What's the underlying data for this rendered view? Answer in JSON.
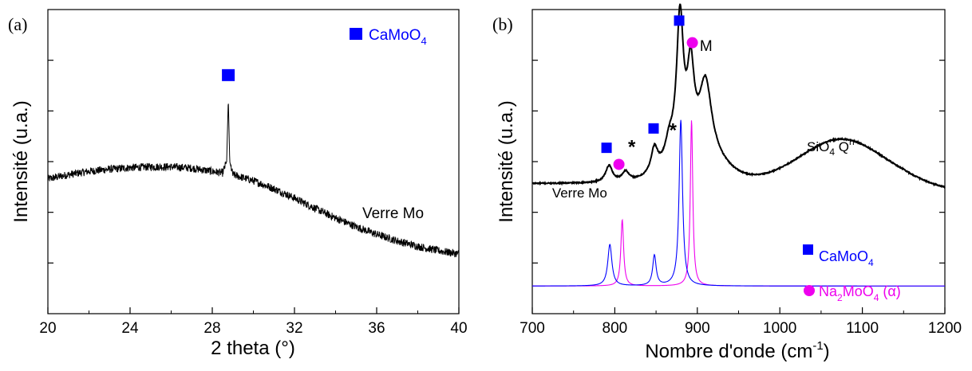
{
  "chart_data": [
    {
      "panel_label": "(a)",
      "type": "line",
      "xlabel": "2 theta (°)",
      "ylabel": "Intensité (u.a.)",
      "xlim": [
        20,
        40
      ],
      "x_ticks": [
        20,
        24,
        28,
        32,
        36,
        40
      ],
      "x_tick_labels": [
        "20",
        "24",
        "28",
        "32",
        "36",
        "40"
      ],
      "y_tick_labels_shown": false,
      "grid": false,
      "legend": {
        "position": "top-right",
        "entries": [
          {
            "marker": "square",
            "color": "#0000ff",
            "label_main": "CaMoO",
            "label_sub": "4"
          }
        ]
      },
      "series": [
        {
          "name": "Verre Mo",
          "color": "#000000",
          "points": [
            [
              20.0,
              0.62
            ],
            [
              21.0,
              0.64
            ],
            [
              22.0,
              0.655
            ],
            [
              23.0,
              0.665
            ],
            [
              24.0,
              0.672
            ],
            [
              25.0,
              0.676
            ],
            [
              26.0,
              0.676
            ],
            [
              27.0,
              0.67
            ],
            [
              28.0,
              0.655
            ],
            [
              28.5,
              0.648
            ],
            [
              28.7,
              0.7
            ],
            [
              28.78,
              0.99
            ],
            [
              28.85,
              0.7
            ],
            [
              29.0,
              0.64
            ],
            [
              30.0,
              0.612
            ],
            [
              31.0,
              0.575
            ],
            [
              32.0,
              0.532
            ],
            [
              33.0,
              0.485
            ],
            [
              34.0,
              0.44
            ],
            [
              35.0,
              0.4
            ],
            [
              36.0,
              0.365
            ],
            [
              37.0,
              0.335
            ],
            [
              38.0,
              0.31
            ],
            [
              39.0,
              0.29
            ],
            [
              40.0,
              0.275
            ]
          ],
          "noise_amplitude": 0.018
        }
      ],
      "annotations": [
        {
          "type": "marker",
          "shape": "square",
          "color": "#0000ff",
          "x": 28.78,
          "y": 1.1
        },
        {
          "type": "text",
          "text": "Verre Mo",
          "x": 35.3,
          "y": 0.44
        }
      ],
      "ylim": [
        0,
        1.4
      ]
    },
    {
      "panel_label": "(b)",
      "type": "line",
      "xlabel_main": "Nombre d'onde (cm",
      "xlabel_sup": "-1",
      "xlabel_end": ")",
      "ylabel": "Intensité (u.a.)",
      "xlim": [
        700,
        1200
      ],
      "x_ticks": [
        700,
        800,
        900,
        1000,
        1100,
        1200
      ],
      "x_tick_labels": [
        "700",
        "800",
        "900",
        "1000",
        "1100",
        "1200"
      ],
      "y_tick_labels_shown": false,
      "grid": false,
      "ylim": [
        -0.1,
        1.0
      ],
      "series": [
        {
          "name": "Verre Mo",
          "color": "#000000",
          "baseline": 0.37,
          "peaks": [
            {
              "center": 793,
              "height": 0.06,
              "width": 5
            },
            {
              "center": 813,
              "height": 0.035,
              "width": 5
            },
            {
              "center": 848,
              "height": 0.09,
              "width": 5
            },
            {
              "center": 866,
              "height": 0.07,
              "width": 6
            },
            {
              "center": 879,
              "height": 0.5,
              "width": 5
            },
            {
              "center": 892,
              "height": 0.28,
              "width": 5
            },
            {
              "center": 910,
              "height": 0.26,
              "width": 9
            },
            {
              "center": 900,
              "height": 0.1,
              "width": 30
            },
            {
              "center": 1075,
              "height": 0.16,
              "width": 50
            }
          ],
          "broad_gaussian": true
        },
        {
          "name": "CaMoO4",
          "color": "#0000ff",
          "baseline": 0.0,
          "peaks": [
            {
              "center": 794,
              "height": 0.15,
              "width": 3
            },
            {
              "center": 848,
              "height": 0.11,
              "width": 2.5
            },
            {
              "center": 880,
              "height": 0.6,
              "width": 2.5
            }
          ]
        },
        {
          "name": "Na2MoO4 (α)",
          "color": "#ee00ee",
          "baseline": 0.0,
          "peaks": [
            {
              "center": 809,
              "height": 0.24,
              "width": 2
            },
            {
              "center": 893,
              "height": 0.6,
              "width": 1.8
            }
          ]
        }
      ],
      "annotations": [
        {
          "type": "text",
          "text": "Verre Mo",
          "x": 724,
          "y": 0.32
        },
        {
          "type": "text",
          "text": "M",
          "x": 903,
          "y": 0.85
        },
        {
          "type": "text",
          "text": "*",
          "x": 816,
          "y": 0.48
        },
        {
          "type": "text",
          "text": "*",
          "x": 866,
          "y": 0.54
        },
        {
          "type": "marker",
          "shape": "square",
          "color": "#0000ff",
          "x": 790,
          "y": 0.5
        },
        {
          "type": "marker",
          "shape": "square",
          "color": "#0000ff",
          "x": 847,
          "y": 0.57
        },
        {
          "type": "marker",
          "shape": "square",
          "color": "#0000ff",
          "x": 878,
          "y": 0.96
        },
        {
          "type": "marker",
          "shape": "circle",
          "color": "#ee00ee",
          "x": 805,
          "y": 0.44
        },
        {
          "type": "marker",
          "shape": "circle",
          "color": "#ee00ee",
          "x": 894,
          "y": 0.88
        }
      ],
      "labels": {
        "siO4_main": "SiO",
        "siO4_sub": "4",
        "siO4_tail": " Q",
        "siO4_sup": "n",
        "camoo4_main": "CaMoO",
        "camoo4_sub": "4",
        "na_main": "Na",
        "na_sub1": "2",
        "na_mid": "MoO",
        "na_sub2": "4",
        "na_tail": " (α)"
      }
    }
  ]
}
